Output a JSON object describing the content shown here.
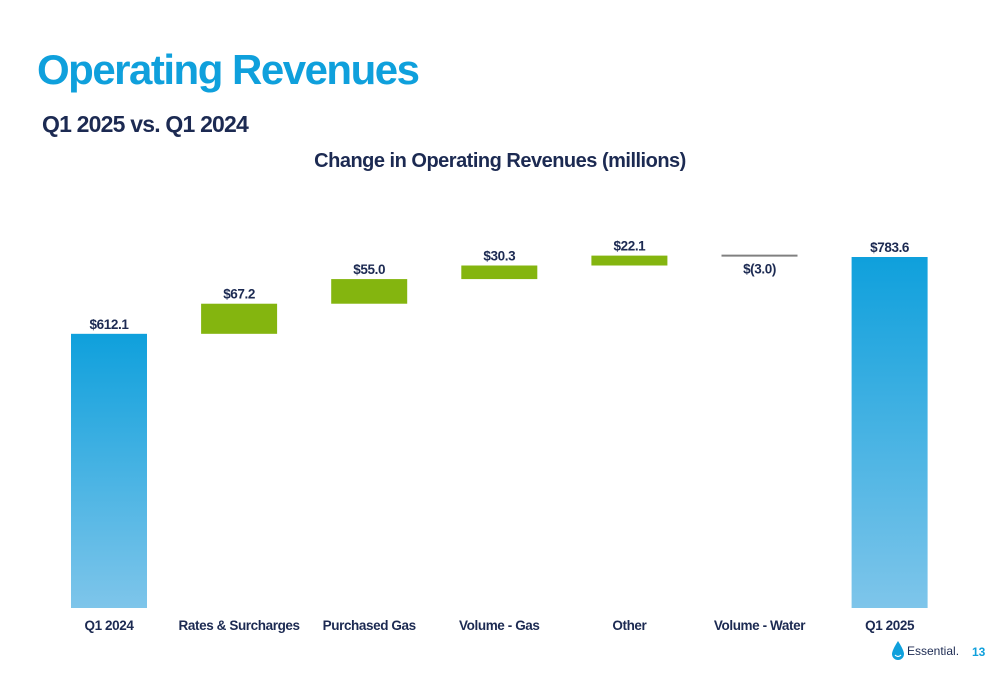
{
  "header": {
    "title": "Operating Revenues",
    "subtitle": "Q1 2025 vs. Q1 2024"
  },
  "colors": {
    "title": "#0fa0dc",
    "text": "#1c2a52",
    "total_bar_top": "#0fa0dc",
    "total_bar_bottom": "#7ec5ea",
    "increase_bar": "#84b50f",
    "decrease_line": "#808080"
  },
  "chart_data": {
    "type": "bar",
    "subtype": "waterfall",
    "title": "Change in Operating Revenues (millions)",
    "categories": [
      "Q1 2024",
      "Rates & Surcharges",
      "Purchased Gas",
      "Volume - Gas",
      "Other",
      "Volume - Water",
      "Q1 2025"
    ],
    "values": [
      612.1,
      67.2,
      55.0,
      30.3,
      22.1,
      -3.0,
      783.6
    ],
    "labels": [
      "$612.1",
      "$67.2",
      "$55.0",
      "$30.3",
      "$22.1",
      "$(3.0)",
      "$783.6"
    ],
    "kinds": [
      "total",
      "delta",
      "delta",
      "delta",
      "delta",
      "delta",
      "total"
    ],
    "ylim": [
      0,
      800
    ]
  },
  "footer": {
    "logo_text": "Essential.",
    "page_number": "13"
  }
}
